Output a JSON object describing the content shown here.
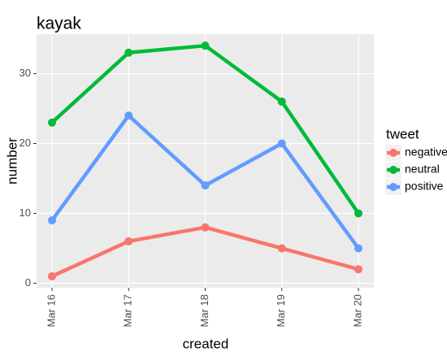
{
  "chart_data": {
    "type": "line",
    "title": "kayak",
    "x_label": "created",
    "y_label": "number",
    "categories": [
      "Mar 16",
      "Mar 17",
      "Mar 18",
      "Mar 19",
      "Mar 20"
    ],
    "series": [
      {
        "name": "negative",
        "color": "#F8766D",
        "values": [
          1,
          6,
          8,
          5,
          2
        ]
      },
      {
        "name": "neutral",
        "color": "#00BA38",
        "values": [
          23,
          33,
          34,
          26,
          10
        ]
      },
      {
        "name": "positive",
        "color": "#619CFF",
        "values": [
          9,
          24,
          14,
          20,
          5
        ]
      }
    ],
    "ylim": [
      -0.65,
      35.65
    ],
    "yticks": [
      0,
      10,
      20,
      30
    ],
    "grid": true,
    "legend_title": "tweet",
    "legend": "right"
  }
}
